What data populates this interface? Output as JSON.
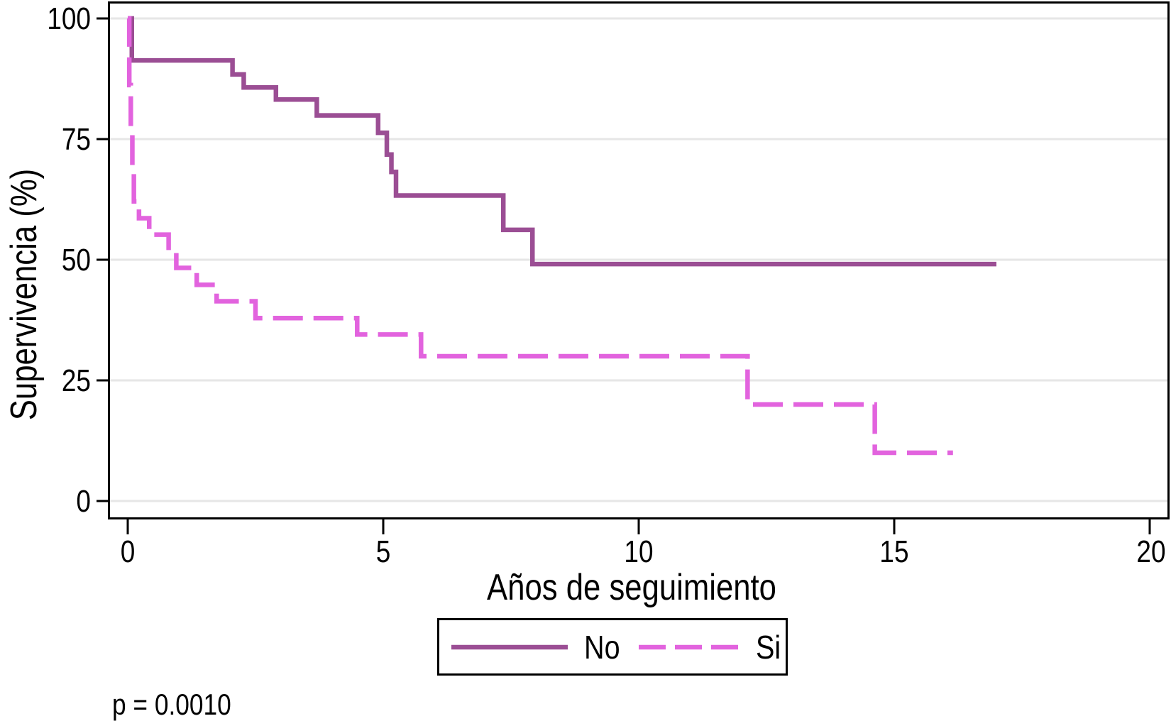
{
  "chart_data": {
    "type": "line",
    "subtype": "kaplan_meier_step",
    "title": "",
    "xlabel": "Años de seguimiento",
    "ylabel": "Supervivencia (%)",
    "xlim": [
      0,
      20
    ],
    "ylim": [
      0,
      100
    ],
    "xticks": [
      0,
      5,
      10,
      15,
      20
    ],
    "yticks": [
      0,
      25,
      50,
      75,
      100
    ],
    "grid": "horizontal-only",
    "annotation": "p = 0.0010",
    "legend": {
      "position": "bottom-center",
      "entries": [
        "No",
        "Si"
      ]
    },
    "colors": {
      "no_line": "#9B4E94",
      "si_line": "#E263DE",
      "gridline": "#E6E6E6",
      "axis": "#000000",
      "background": "#FFFFFF"
    },
    "series": [
      {
        "name": "No",
        "line_style": "solid",
        "color": "#9B4E94",
        "points": [
          [
            0,
            100
          ],
          [
            0.08,
            91.3
          ],
          [
            2.05,
            88.4
          ],
          [
            2.27,
            85.7
          ],
          [
            2.9,
            83.2
          ],
          [
            3.7,
            79.9
          ],
          [
            4.9,
            76.3
          ],
          [
            5.07,
            71.8
          ],
          [
            5.16,
            68.2
          ],
          [
            5.25,
            63.3
          ],
          [
            7.35,
            56.2
          ],
          [
            7.92,
            49.1
          ],
          [
            17.0,
            49.1
          ]
        ]
      },
      {
        "name": "Si",
        "line_style": "dashed",
        "color": "#E263DE",
        "points": [
          [
            0,
            100
          ],
          [
            0.03,
            86.2
          ],
          [
            0.06,
            76.5
          ],
          [
            0.09,
            69.0
          ],
          [
            0.12,
            62.1
          ],
          [
            0.22,
            58.6
          ],
          [
            0.42,
            55.2
          ],
          [
            0.8,
            51.7
          ],
          [
            0.95,
            48.3
          ],
          [
            1.35,
            44.8
          ],
          [
            1.74,
            41.4
          ],
          [
            2.5,
            37.9
          ],
          [
            4.49,
            34.5
          ],
          [
            5.74,
            30.0
          ],
          [
            12.13,
            20.0
          ],
          [
            14.62,
            10.0
          ],
          [
            16.15,
            10.0
          ]
        ]
      }
    ]
  }
}
